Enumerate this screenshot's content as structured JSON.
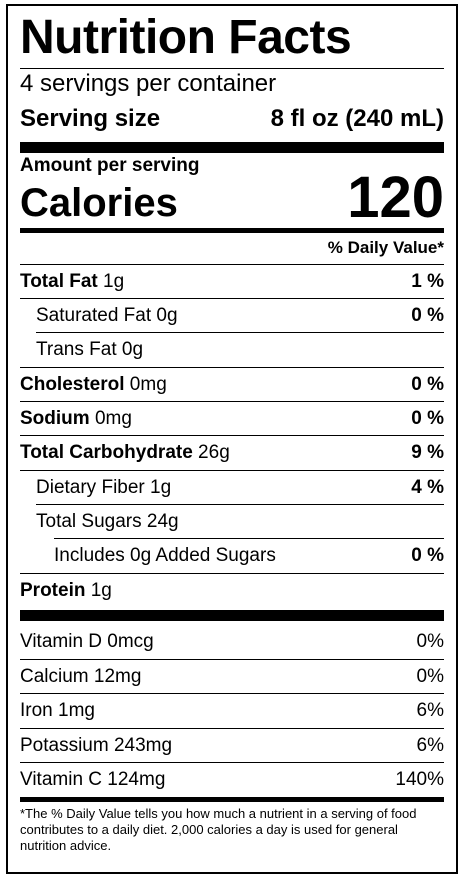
{
  "label": {
    "title": "Nutrition Facts",
    "servings_per_container": "4 servings per container",
    "serving_size_label": "Serving size",
    "serving_size_value": "8 fl oz (240 mL)",
    "amount_per_serving": "Amount per serving",
    "calories_label": "Calories",
    "calories_value": "120",
    "daily_value_header": "% Daily Value*",
    "nutrients": [
      {
        "name": "Total Fat",
        "amount": " 1g",
        "dv": "1 %"
      },
      {
        "name": "Saturated Fat  0g",
        "amount": "",
        "dv": "0 %"
      },
      {
        "name": "Trans Fat 0g",
        "amount": "",
        "dv": ""
      },
      {
        "name": "Cholesterol",
        "amount": " 0mg",
        "dv": "0 %"
      },
      {
        "name": "Sodium",
        "amount": " 0mg",
        "dv": "0 %"
      },
      {
        "name": "Total Carbohydrate",
        "amount": " 26g",
        "dv": "9 %"
      },
      {
        "name": "Dietary Fiber  1g",
        "amount": "",
        "dv": "4 %"
      },
      {
        "name": "Total Sugars  24g",
        "amount": "",
        "dv": ""
      },
      {
        "name": "Includes 0g Added Sugars",
        "amount": "",
        "dv": "0 %"
      },
      {
        "name": "Protein",
        "amount": "  1g",
        "dv": ""
      }
    ],
    "vitamins": [
      {
        "name": "Vitamin D  0mcg",
        "dv": "0%"
      },
      {
        "name": "Calcium  12mg",
        "dv": "0%"
      },
      {
        "name": "Iron  1mg",
        "dv": "6%"
      },
      {
        "name": "Potassium  243mg",
        "dv": "6%"
      },
      {
        "name": "Vitamin C  124mg",
        "dv": "140%"
      }
    ],
    "footnote": "*The % Daily Value tells you how much a nutrient in a serving of food contributes to a daily diet. 2,000 calories a day is used for general nutrition advice."
  }
}
